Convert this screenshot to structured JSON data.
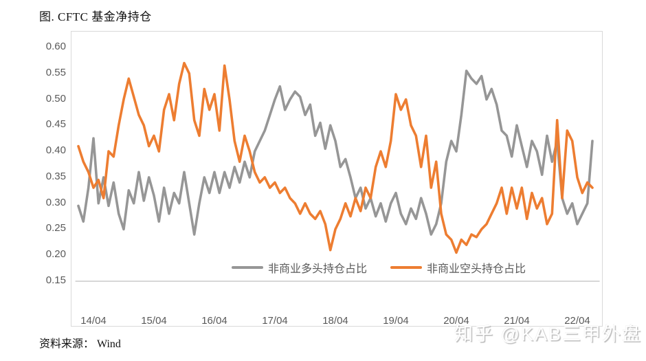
{
  "page": {
    "title": "图. CFTC 基金净持仓",
    "source": "资料来源： Wind",
    "watermark": "知乎 @KAB三甲外盘"
  },
  "chart_data": {
    "type": "line",
    "title": "图. CFTC 基金净持仓",
    "xlabel": "",
    "ylabel": "",
    "grid": false,
    "legend_position": "bottom-inside",
    "ylim": [
      0.15,
      0.6
    ],
    "y_ticks": [
      0.6,
      0.55,
      0.5,
      0.45,
      0.4,
      0.35,
      0.3,
      0.25,
      0.2,
      0.15
    ],
    "x_ticks": [
      "14/04",
      "15/04",
      "16/04",
      "17/04",
      "18/04",
      "19/04",
      "20/04",
      "21/04",
      "22/04"
    ],
    "x_tick_years": [
      14.25,
      15.25,
      16.25,
      17.25,
      18.25,
      19.25,
      20.25,
      21.25,
      22.25
    ],
    "axis_color": "#BFBFBF",
    "x": [
      14.0,
      14.083,
      14.167,
      14.25,
      14.333,
      14.417,
      14.5,
      14.583,
      14.667,
      14.75,
      14.833,
      14.917,
      15.0,
      15.083,
      15.167,
      15.25,
      15.333,
      15.417,
      15.5,
      15.583,
      15.667,
      15.75,
      15.833,
      15.917,
      16.0,
      16.083,
      16.167,
      16.25,
      16.333,
      16.417,
      16.5,
      16.583,
      16.667,
      16.75,
      16.833,
      16.917,
      17.0,
      17.083,
      17.167,
      17.25,
      17.333,
      17.417,
      17.5,
      17.583,
      17.667,
      17.75,
      17.833,
      17.917,
      18.0,
      18.083,
      18.167,
      18.25,
      18.333,
      18.417,
      18.5,
      18.583,
      18.667,
      18.75,
      18.833,
      18.917,
      19.0,
      19.083,
      19.167,
      19.25,
      19.333,
      19.417,
      19.5,
      19.583,
      19.667,
      19.75,
      19.833,
      19.917,
      20.0,
      20.083,
      20.167,
      20.25,
      20.333,
      20.417,
      20.5,
      20.583,
      20.667,
      20.75,
      20.833,
      20.917,
      21.0,
      21.083,
      21.167,
      21.25,
      21.333,
      21.417,
      21.5,
      21.583,
      21.667,
      21.75,
      21.833,
      21.917,
      22.0,
      22.083,
      22.167,
      22.25,
      22.333,
      22.417,
      22.5
    ],
    "series": [
      {
        "name": "非商业多头持仓占比",
        "color": "#969696",
        "values": [
          0.295,
          0.265,
          0.33,
          0.425,
          0.3,
          0.35,
          0.295,
          0.34,
          0.28,
          0.25,
          0.325,
          0.3,
          0.36,
          0.305,
          0.35,
          0.315,
          0.265,
          0.33,
          0.28,
          0.32,
          0.3,
          0.36,
          0.3,
          0.24,
          0.3,
          0.35,
          0.32,
          0.36,
          0.32,
          0.36,
          0.33,
          0.37,
          0.34,
          0.38,
          0.35,
          0.4,
          0.42,
          0.44,
          0.47,
          0.5,
          0.525,
          0.48,
          0.5,
          0.515,
          0.505,
          0.47,
          0.49,
          0.43,
          0.455,
          0.405,
          0.45,
          0.42,
          0.37,
          0.385,
          0.35,
          0.31,
          0.33,
          0.29,
          0.31,
          0.275,
          0.3,
          0.265,
          0.3,
          0.32,
          0.28,
          0.26,
          0.29,
          0.27,
          0.31,
          0.28,
          0.24,
          0.26,
          0.3,
          0.38,
          0.42,
          0.4,
          0.47,
          0.555,
          0.54,
          0.53,
          0.545,
          0.5,
          0.52,
          0.49,
          0.44,
          0.43,
          0.39,
          0.45,
          0.41,
          0.37,
          0.42,
          0.4,
          0.355,
          0.43,
          0.38,
          0.42,
          0.31,
          0.28,
          0.3,
          0.26,
          0.28,
          0.3,
          0.42
        ]
      },
      {
        "name": "非商业空头持仓占比",
        "color": "#ED7D31",
        "values": [
          0.41,
          0.38,
          0.36,
          0.33,
          0.345,
          0.31,
          0.4,
          0.39,
          0.45,
          0.5,
          0.54,
          0.505,
          0.47,
          0.45,
          0.41,
          0.43,
          0.4,
          0.48,
          0.51,
          0.46,
          0.53,
          0.57,
          0.55,
          0.46,
          0.43,
          0.52,
          0.48,
          0.51,
          0.44,
          0.565,
          0.5,
          0.42,
          0.38,
          0.43,
          0.4,
          0.36,
          0.34,
          0.35,
          0.33,
          0.34,
          0.32,
          0.33,
          0.31,
          0.3,
          0.28,
          0.3,
          0.28,
          0.27,
          0.285,
          0.26,
          0.21,
          0.25,
          0.27,
          0.3,
          0.275,
          0.31,
          0.285,
          0.33,
          0.31,
          0.37,
          0.4,
          0.37,
          0.42,
          0.51,
          0.48,
          0.5,
          0.45,
          0.43,
          0.37,
          0.43,
          0.33,
          0.38,
          0.28,
          0.24,
          0.23,
          0.205,
          0.23,
          0.22,
          0.24,
          0.235,
          0.25,
          0.26,
          0.28,
          0.3,
          0.33,
          0.28,
          0.33,
          0.29,
          0.33,
          0.27,
          0.32,
          0.29,
          0.31,
          0.26,
          0.28,
          0.46,
          0.31,
          0.44,
          0.42,
          0.35,
          0.32,
          0.34,
          0.33
        ]
      }
    ]
  }
}
